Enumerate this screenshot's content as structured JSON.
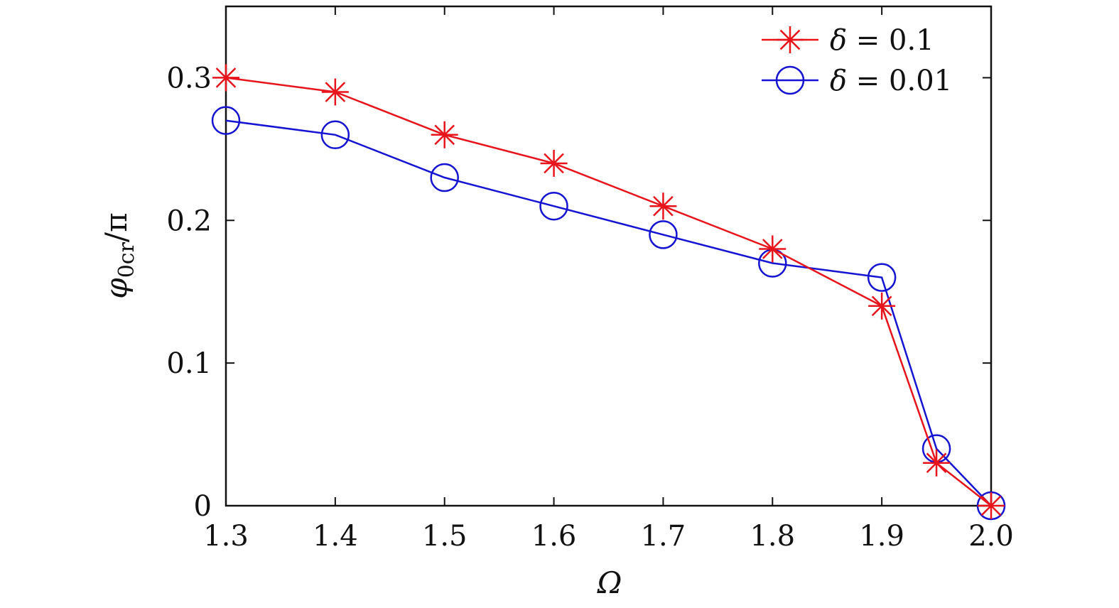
{
  "chart_data": {
    "type": "line",
    "xlabel": "Ω",
    "ylabel": {
      "main": "φ",
      "sub": "0cr",
      "tail": "/π"
    },
    "xlim": [
      1.3,
      2.0
    ],
    "ylim": [
      0,
      0.35
    ],
    "xticks": [
      1.3,
      1.4,
      1.5,
      1.6,
      1.7,
      1.8,
      1.9,
      2.0
    ],
    "xtick_labels": [
      "1.3",
      "1.4",
      "1.5",
      "1.6",
      "1.7",
      "1.8",
      "1.9",
      "2.0"
    ],
    "yticks": [
      0,
      0.1,
      0.2,
      0.3
    ],
    "ytick_labels": [
      "0",
      "0.1",
      "0.2",
      "0.3"
    ],
    "grid": false,
    "legend_position": "top-right",
    "series": [
      {
        "name": "δ = 0.1",
        "legend": {
          "sym": "δ",
          "rest": " = 0.1"
        },
        "color": "#e8141c",
        "marker": "asterisk",
        "x": [
          1.3,
          1.4,
          1.5,
          1.6,
          1.7,
          1.8,
          1.9,
          1.95,
          2.0
        ],
        "y": [
          0.3,
          0.29,
          0.26,
          0.24,
          0.21,
          0.18,
          0.14,
          0.03,
          0.0
        ]
      },
      {
        "name": "δ = 0.01",
        "legend": {
          "sym": "δ",
          "rest": " = 0.01"
        },
        "color": "#1414d2",
        "marker": "circle",
        "x": [
          1.3,
          1.4,
          1.5,
          1.6,
          1.7,
          1.8,
          1.9,
          1.95,
          2.0
        ],
        "y": [
          0.27,
          0.26,
          0.23,
          0.21,
          0.19,
          0.17,
          0.16,
          0.04,
          0.0
        ]
      }
    ]
  }
}
